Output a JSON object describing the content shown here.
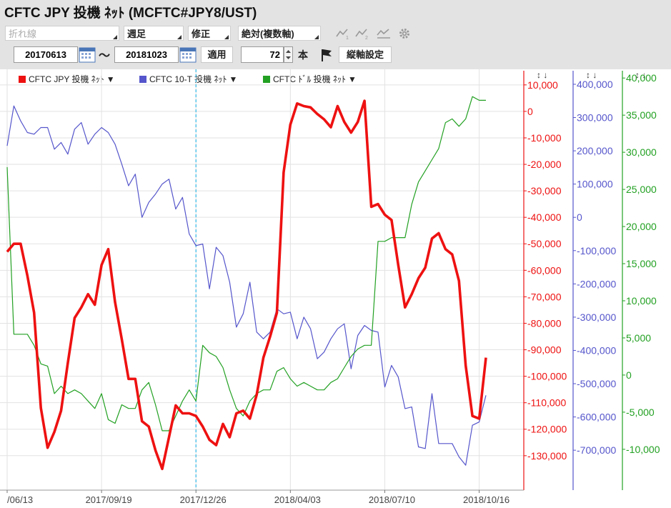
{
  "title": "CFTC JPY 投機 ﾈｯﾄ (MCFTC#JPY8/UST)",
  "toolbar": {
    "chart_type": "折れ線",
    "period": "週足",
    "correction": "修正",
    "scale": "絶対(複数軸)",
    "start_date": "20170613",
    "tilde": "～",
    "end_date": "20181023",
    "apply_label": "適用",
    "count": "72",
    "count_unit": "本",
    "vertical_axis_label": "縦軸設定"
  },
  "colors": {
    "jpy": "#ee1111",
    "tnote": "#5555cc",
    "usd": "#22a022"
  },
  "legend": [
    {
      "label": "CFTC JPY 投機 ﾈｯﾄ",
      "arrow": "▼"
    },
    {
      "label": "CFTC 10-T 投機 ﾈｯﾄ",
      "arrow": "▼"
    },
    {
      "label": "CFTC ﾄﾞﾙ 投機 ﾈｯﾄ",
      "arrow": "▼"
    }
  ],
  "axis_controls": [
    "↕ ↓",
    "↕ ↓",
    "↕ ↓"
  ],
  "chart_data": {
    "type": "line",
    "x": [
      "2017/06/13",
      "2017/06/20",
      "2017/06/27",
      "2017/07/04",
      "2017/07/11",
      "2017/07/18",
      "2017/07/25",
      "2017/08/01",
      "2017/08/08",
      "2017/08/15",
      "2017/08/22",
      "2017/08/29",
      "2017/09/05",
      "2017/09/12",
      "2017/09/19",
      "2017/09/26",
      "2017/10/03",
      "2017/10/10",
      "2017/10/17",
      "2017/10/24",
      "2017/10/31",
      "2017/11/07",
      "2017/11/14",
      "2017/11/21",
      "2017/11/28",
      "2017/12/05",
      "2017/12/12",
      "2017/12/19",
      "2017/12/26",
      "2018/01/02",
      "2018/01/09",
      "2018/01/16",
      "2018/01/23",
      "2018/01/30",
      "2018/02/06",
      "2018/02/13",
      "2018/02/20",
      "2018/02/27",
      "2018/03/06",
      "2018/03/13",
      "2018/03/20",
      "2018/03/27",
      "2018/04/03",
      "2018/04/10",
      "2018/04/17",
      "2018/04/24",
      "2018/05/01",
      "2018/05/08",
      "2018/05/15",
      "2018/05/22",
      "2018/05/29",
      "2018/06/05",
      "2018/06/12",
      "2018/06/19",
      "2018/06/26",
      "2018/07/03",
      "2018/07/10",
      "2018/07/17",
      "2018/07/24",
      "2018/07/31",
      "2018/08/07",
      "2018/08/14",
      "2018/08/21",
      "2018/08/28",
      "2018/09/04",
      "2018/09/11",
      "2018/09/18",
      "2018/09/25",
      "2018/10/02",
      "2018/10/09",
      "2018/10/16",
      "2018/10/23"
    ],
    "x_ticks": [
      "2017/06/13",
      "2017/09/19",
      "2017/12/26",
      "2018/04/03",
      "2018/07/10",
      "2018/10/16"
    ],
    "x_tick_labels": [
      "/06/13",
      "2017/09/19",
      "2017/12/26",
      "2018/04/03",
      "2018/07/10",
      "2018/10/16"
    ],
    "marker_date": "2017/12/26",
    "grid": true,
    "series": [
      {
        "name": "CFTC JPY 投機 ﾈｯﾄ",
        "axis": 0,
        "values": [
          -53000,
          -50000,
          -50000,
          -62000,
          -76000,
          -112000,
          -127000,
          -121000,
          -113000,
          -95000,
          -78000,
          -74000,
          -69000,
          -73000,
          -58000,
          -52000,
          -72000,
          -86000,
          -101000,
          -101000,
          -117000,
          -119000,
          -128000,
          -135000,
          -123000,
          -111000,
          -114000,
          -114000,
          -115000,
          -119000,
          -124000,
          -126000,
          -118000,
          -123000,
          -114000,
          -113000,
          -116000,
          -107000,
          -93000,
          -85000,
          -76000,
          -23000,
          -5000,
          3000,
          2000,
          1500,
          -1000,
          -3000,
          -6000,
          2000,
          -4000,
          -8000,
          -4000,
          4000,
          -36000,
          -35000,
          -39000,
          -41000,
          -58000,
          -74000,
          -69000,
          -63000,
          -59000,
          -48000,
          -46000,
          -52000,
          -54000,
          -64000,
          -96000,
          -115000,
          -116000,
          -93000
        ]
      },
      {
        "name": "CFTC 10-T 投機 ﾈｯﾄ",
        "axis": 1,
        "values": [
          215000,
          335000,
          290000,
          255000,
          250000,
          270000,
          270000,
          205000,
          225000,
          190000,
          265000,
          285000,
          220000,
          250000,
          270000,
          255000,
          220000,
          160000,
          95000,
          130000,
          0,
          45000,
          70000,
          100000,
          115000,
          25000,
          60000,
          -50000,
          -85000,
          -80000,
          -215000,
          -90000,
          -115000,
          -195000,
          -330000,
          -290000,
          -195000,
          -345000,
          -365000,
          -345000,
          -275000,
          -290000,
          -285000,
          -365000,
          -300000,
          -335000,
          -425000,
          -405000,
          -365000,
          -335000,
          -320000,
          -455000,
          -355000,
          -325000,
          -340000,
          -345000,
          -510000,
          -445000,
          -480000,
          -575000,
          -570000,
          -690000,
          -695000,
          -530000,
          -680000,
          -680000,
          -680000,
          -720000,
          -745000,
          -625000,
          -615000,
          -535000
        ]
      },
      {
        "name": "CFTC ﾄﾞﾙ 投機 ﾈｯﾄ",
        "axis": 2,
        "values": [
          28000,
          5500,
          5500,
          5500,
          4000,
          1500,
          1200,
          -2500,
          -1500,
          -2500,
          -2000,
          -2500,
          -3500,
          -4500,
          -2500,
          -6000,
          -6500,
          -4000,
          -4500,
          -4500,
          -2000,
          -1000,
          -4000,
          -7500,
          -7500,
          -5500,
          -3500,
          -2000,
          -3500,
          4000,
          3000,
          2500,
          1000,
          -2000,
          -4500,
          -5500,
          -3500,
          -2500,
          -2000,
          -2000,
          500,
          1000,
          -500,
          -1500,
          -1000,
          -1500,
          -2000,
          -2000,
          -1000,
          -500,
          1000,
          2500,
          3500,
          4000,
          4000,
          18000,
          18000,
          18500,
          18500,
          18500,
          23000,
          26000,
          27500,
          29000,
          30500,
          34000,
          34500,
          33500,
          34500,
          37500,
          37000,
          37000
        ]
      }
    ],
    "axes": [
      {
        "name": "CFTC JPY 投機 ﾈｯﾄ",
        "ticks": [
          10000,
          0,
          -10000,
          -20000,
          -30000,
          -40000,
          -50000,
          -60000,
          -70000,
          -80000,
          -90000,
          -100000,
          -110000,
          -120000,
          -130000
        ],
        "tick_labels": [
          "10,000",
          "0",
          "-10,000",
          "-20,000",
          "-30,000",
          "-40,000",
          "-50,000",
          "-60,000",
          "-70,000",
          "-80,000",
          "-90,000",
          "-100,000",
          "-110,000",
          "-120,000",
          "-130,000"
        ],
        "ylim": [
          -143000,
          14000
        ]
      },
      {
        "name": "CFTC 10-T 投機 ﾈｯﾄ",
        "ticks": [
          400000,
          300000,
          200000,
          100000,
          0,
          -100000,
          -200000,
          -300000,
          -400000,
          -500000,
          -600000,
          -700000
        ],
        "tick_labels": [
          "400,000",
          "300,000",
          "200,000",
          "100,000",
          "0",
          "-100,000",
          "-200,000",
          "-300,000",
          "-400,000",
          "-500,000",
          "-600,000",
          "-700,000"
        ],
        "ylim": [
          -820000,
          430000
        ]
      },
      {
        "name": "CFTC ﾄﾞﾙ 投機 ﾈｯﾄ",
        "ticks": [
          40000,
          35000,
          30000,
          25000,
          20000,
          15000,
          10000,
          5000,
          0,
          -5000,
          -10000
        ],
        "tick_labels": [
          "40,000",
          "35,000",
          "30,000",
          "25,000",
          "20,000",
          "15,000",
          "10,000",
          "5,000",
          "0",
          "-5,000",
          "-10,000"
        ],
        "ylim": [
          -15500,
          40500
        ]
      }
    ]
  }
}
